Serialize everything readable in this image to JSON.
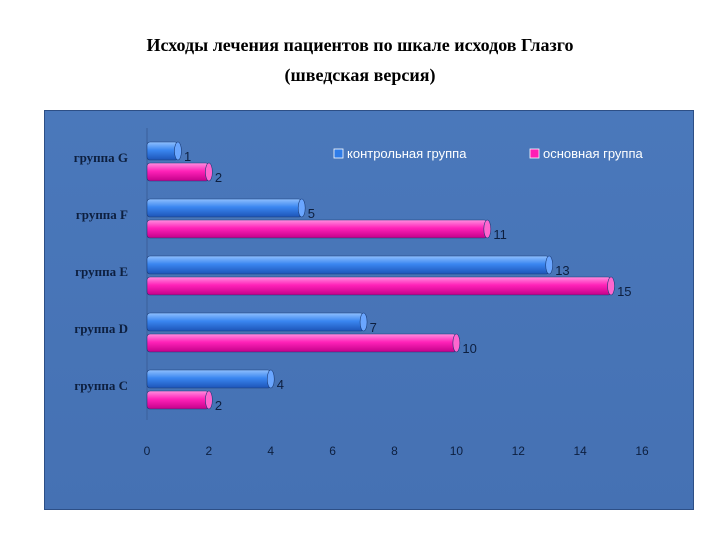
{
  "title_line1": "Исходы лечения пациентов по шкале исходов Глазго",
  "title_line2": "(шведская версия)",
  "colors": {
    "panel": "#4a78bb",
    "control": "#2f7ce8",
    "treatment": "#ff1eb4",
    "text": "#0d1f3f"
  },
  "chart_data": {
    "type": "bar",
    "orientation": "horizontal",
    "categories": [
      "группа G",
      "группа F",
      "группа E",
      "группа D",
      "группа C"
    ],
    "series": [
      {
        "name": "контрольная группа",
        "values": [
          1,
          5,
          13,
          7,
          4
        ]
      },
      {
        "name": "основная группа",
        "values": [
          2,
          11,
          15,
          10,
          2
        ]
      }
    ],
    "xlim": [
      0,
      16
    ],
    "xticks": [
      "0",
      "2",
      "4",
      "6",
      "8",
      "10",
      "12",
      "14",
      "16"
    ],
    "legend_position": "top-right",
    "grid": false
  }
}
